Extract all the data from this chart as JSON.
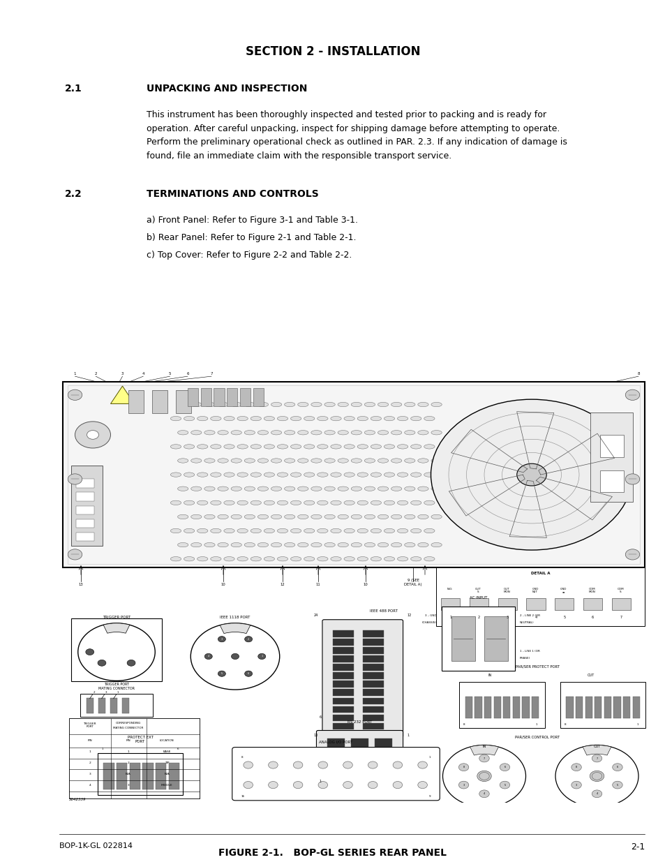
{
  "bg_color": "#ffffff",
  "page_width": 9.54,
  "page_height": 12.35,
  "dpi": 100,
  "title": "SECTION 2 - INSTALLATION",
  "title_fontsize": 12,
  "section_21_label": "2.1",
  "section_21_title": "UNPACKING AND INSPECTION",
  "section_22_label": "2.2",
  "section_22_title": "TERMINATIONS AND CONTROLS",
  "paragraph_21_line1": "This instrument has been thoroughly inspected and tested prior to packing and is ready for",
  "paragraph_21_line2": "operation. After careful unpacking, inspect for shipping damage before attempting to operate.",
  "paragraph_21_line3": "Perform the preliminary operational check as outlined in PAR. 2.3. If any indication of damage is",
  "paragraph_21_line4": "found, file an immediate claim with the responsible transport service.",
  "para_a": "a) Front Panel: Refer to Figure 3-1 and Table 3-1.",
  "para_b": "b) Rear Panel: Refer to Figure 2-1 and Table 2-1.",
  "para_c": "c) Top Cover: Refer to Figure 2-2 and Table 2-2.",
  "figure_caption": "FIGURE 2-1.   BOP-GL SERIES REAR PANEL",
  "footer_left": "BOP-1K-GL 022814",
  "footer_right": "2-1",
  "label_fontsize": 10,
  "body_fontsize": 9,
  "caption_fontsize": 10,
  "footer_fontsize": 8
}
